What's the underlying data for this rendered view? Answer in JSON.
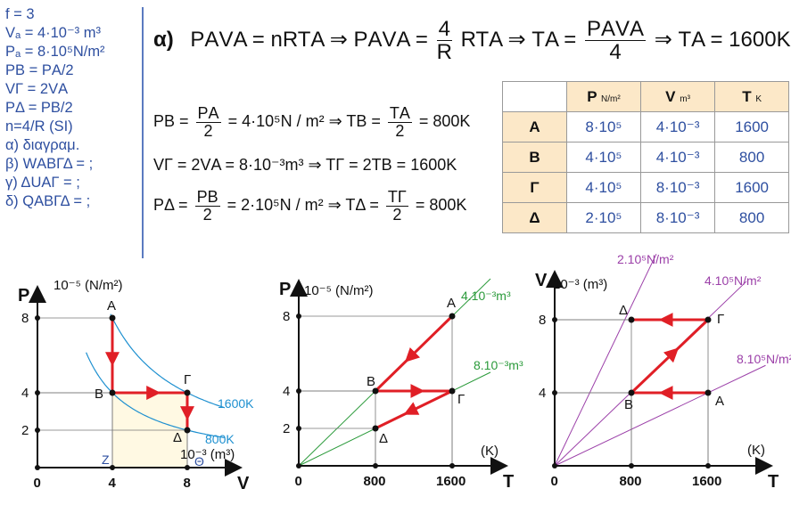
{
  "given": {
    "lines": [
      "f = 3",
      "Vₐ = 4·10⁻³ m³",
      "Pₐ = 8·10⁵N/m²",
      "PΒ = PΑ/2",
      "VΓ = 2VΑ",
      "PΔ =  PΒ/2",
      "n=4/R (SI)",
      "α) διαγραμ.",
      "β) WΑΒΓΔ = ;",
      "γ) ΔUΑΓ = ;",
      "δ) QΑΒΓΔ = ;"
    ]
  },
  "equations": {
    "a_label": "α)",
    "a_line": [
      "PΑVΑ = nRTΑ ⇒ PΑVΑ =",
      "4",
      "R",
      "RTΑ ⇒ TΑ =",
      "PΑVΑ",
      "4",
      "⇒ TΑ = 1600K"
    ],
    "b_line": [
      "PΒ =",
      "PΑ",
      "2",
      "= 4·10⁵N / m² ⇒ TΒ =",
      "TΑ",
      "2",
      "= 800K"
    ],
    "c_line": "VΓ = 2VΑ = 8·10⁻³m³ ⇒ TΓ = 2TΒ = 1600K",
    "d_line": [
      "PΔ =",
      "PΒ",
      "2",
      "= 2·10⁵N / m² ⇒ TΔ =",
      "TΓ",
      "2",
      "= 800K"
    ]
  },
  "table": {
    "headers": [
      "P",
      "N/m²",
      "V",
      "m³",
      "T",
      "K"
    ],
    "rows": [
      {
        "state": "A",
        "P": "8·10⁵",
        "V": "4·10⁻³",
        "T": "1600"
      },
      {
        "state": "B",
        "P": "4·10⁵",
        "V": "4·10⁻³",
        "T": "800"
      },
      {
        "state": "Γ",
        "P": "4·10⁵",
        "V": "8·10⁻³",
        "T": "1600"
      },
      {
        "state": "Δ",
        "P": "2·10⁵",
        "V": "8·10⁻³",
        "T": "800"
      }
    ]
  },
  "colors": {
    "process": "#E01F26",
    "axis": "#111111",
    "iso": "#1E90D0",
    "green": "#2A9A3A",
    "purple": "#9B3FA8",
    "fill": "#FFF9E3",
    "blue_text": "#2E4FA0"
  },
  "chart_data": [
    {
      "type": "line",
      "title": "",
      "xlabel": "V",
      "x_unit": "10⁻³ (m³)",
      "ylabel": "P",
      "y_unit": "10⁻⁵ (N/m²)",
      "xticks": [
        "0",
        "4",
        "8"
      ],
      "yticks": [
        "2",
        "4",
        "8"
      ],
      "points": [
        {
          "name": "A",
          "x": 4,
          "y": 8
        },
        {
          "name": "B",
          "x": 4,
          "y": 4
        },
        {
          "name": "Γ",
          "x": 8,
          "y": 4
        },
        {
          "name": "Δ",
          "x": 8,
          "y": 2
        }
      ],
      "isotherms": [
        "1600K",
        "800K"
      ],
      "extra_labels": [
        "Z",
        "Θ"
      ]
    },
    {
      "type": "line",
      "title": "",
      "xlabel": "T",
      "x_unit": "(K)",
      "ylabel": "P",
      "y_unit": "10⁻⁵ (N/m²)",
      "xticks": [
        "0",
        "800",
        "1600"
      ],
      "yticks": [
        "2",
        "4",
        "8"
      ],
      "points": [
        {
          "name": "A",
          "x": 1600,
          "y": 8
        },
        {
          "name": "B",
          "x": 800,
          "y": 4
        },
        {
          "name": "Γ",
          "x": 1600,
          "y": 4
        },
        {
          "name": "Δ",
          "x": 800,
          "y": 2
        }
      ],
      "isochores": [
        "4.10⁻³m³",
        "8.10⁻³m³"
      ]
    },
    {
      "type": "line",
      "title": "",
      "xlabel": "T",
      "x_unit": "(K)",
      "ylabel": "V",
      "y_unit": "10⁻³ (m³)",
      "xticks": [
        "0",
        "800",
        "1600"
      ],
      "yticks": [
        "4",
        "8"
      ],
      "points": [
        {
          "name": "A",
          "x": 1600,
          "y": 4
        },
        {
          "name": "B",
          "x": 800,
          "y": 4
        },
        {
          "name": "Γ",
          "x": 1600,
          "y": 8
        },
        {
          "name": "Δ",
          "x": 800,
          "y": 8
        }
      ],
      "isobars": [
        "2.10⁵N/m²",
        "4.10⁵N/m²",
        "8.10⁵N/m²"
      ]
    }
  ]
}
